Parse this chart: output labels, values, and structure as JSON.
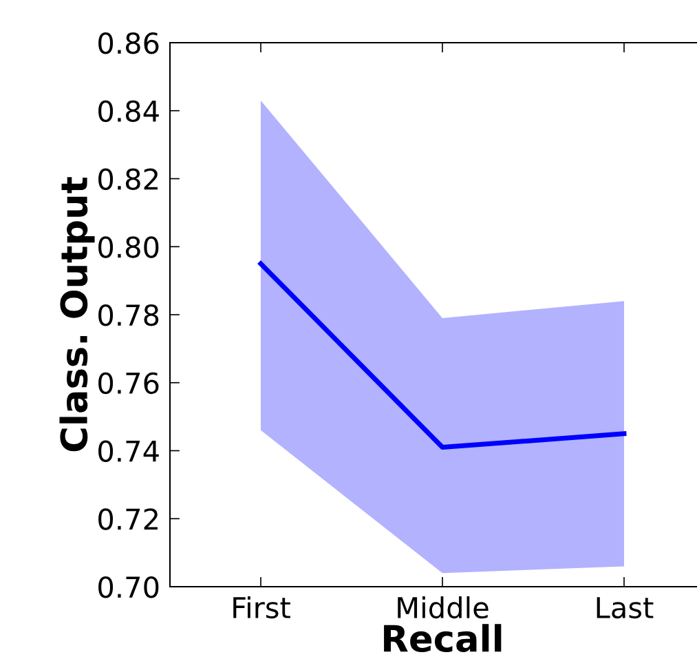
{
  "chart_data": {
    "type": "line",
    "xlabel": "Recall",
    "ylabel": "Class. Output",
    "categories": [
      "First",
      "Middle",
      "Last"
    ],
    "series": [
      {
        "color": "#0000ff",
        "values": [
          0.795,
          0.741,
          0.745
        ],
        "lower": [
          0.746,
          0.704,
          0.706
        ],
        "upper": [
          0.843,
          0.779,
          0.784
        ]
      }
    ],
    "ylim": [
      0.7,
      0.86
    ],
    "yticks": [
      {
        "value": 0.7,
        "label": "0.70"
      },
      {
        "value": 0.72,
        "label": "0.72"
      },
      {
        "value": 0.74,
        "label": "0.74"
      },
      {
        "value": 0.76,
        "label": "0.76"
      },
      {
        "value": 0.78,
        "label": "0.78"
      },
      {
        "value": 0.8,
        "label": "0.80"
      },
      {
        "value": 0.82,
        "label": "0.82"
      },
      {
        "value": 0.84,
        "label": "0.84"
      },
      {
        "value": 0.86,
        "label": "0.86"
      }
    ],
    "grid": false,
    "legend": false,
    "marker": "none",
    "line_style": "solid"
  }
}
